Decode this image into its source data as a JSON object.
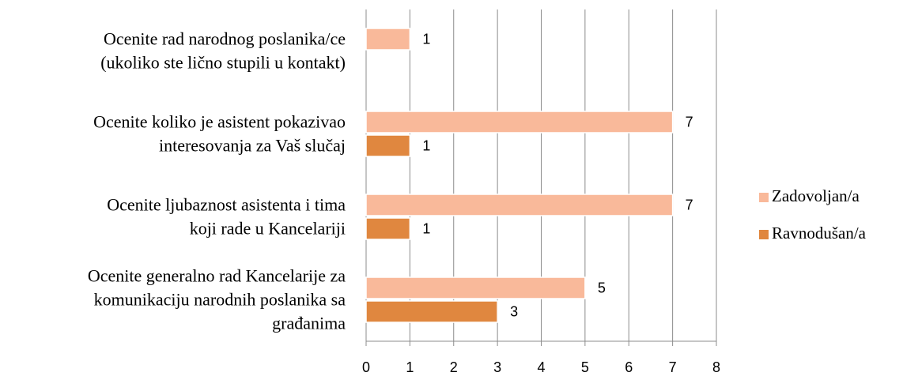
{
  "chart_data": {
    "type": "bar",
    "orientation": "horizontal",
    "categories": [
      [
        "Ocenite rad narodnog poslanika/ce",
        "(ukoliko ste lično stupili u kontakt)"
      ],
      [
        "Ocenite koliko je asistent pokazivao",
        "interesovanja za Vaš slučaj"
      ],
      [
        "Ocenite ljubaznost asistenta i tima",
        "koji rade u Kancelariji"
      ],
      [
        "Ocenite generalno rad Kancelarije za",
        "komunikaciju narodnih poslanika sa",
        "građanima"
      ]
    ],
    "series": [
      {
        "name": "Zadovoljan/a",
        "color": "#f9b99a",
        "values": [
          1,
          7,
          7,
          5
        ]
      },
      {
        "name": "Ravnodušan/a",
        "color": "#e0873f",
        "values": [
          null,
          1,
          1,
          3
        ]
      }
    ],
    "xlim": [
      0,
      8
    ],
    "xticks": [
      0,
      1,
      2,
      3,
      4,
      5,
      6,
      7,
      8
    ],
    "grid": true,
    "legend": "right"
  }
}
